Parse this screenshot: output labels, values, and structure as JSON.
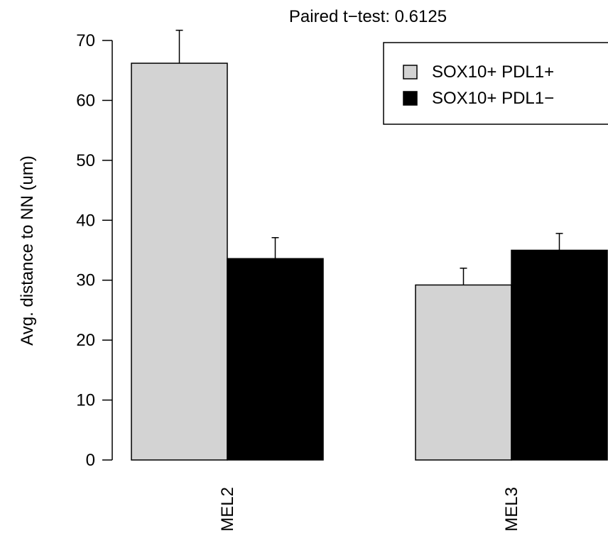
{
  "chart_data": {
    "type": "bar",
    "title": "Paired t−test: 0.6125",
    "ylabel": "Avg. distance to NN (um)",
    "xlabel": "",
    "categories": [
      "MEL2",
      "MEL3"
    ],
    "series": [
      {
        "name": "SOX10+ PDL1+",
        "values": [
          66.2,
          29.2
        ],
        "errors": [
          5.5,
          2.8
        ],
        "color": "#d3d3d3"
      },
      {
        "name": "SOX10+ PDL1−",
        "values": [
          33.6,
          35.0
        ],
        "errors": [
          3.5,
          2.8
        ],
        "color": "#000000"
      }
    ],
    "ylim": [
      0,
      70
    ],
    "yticks": [
      0,
      10,
      20,
      30,
      40,
      50,
      60,
      70
    ],
    "legend_position": "top-right",
    "grid": false
  }
}
